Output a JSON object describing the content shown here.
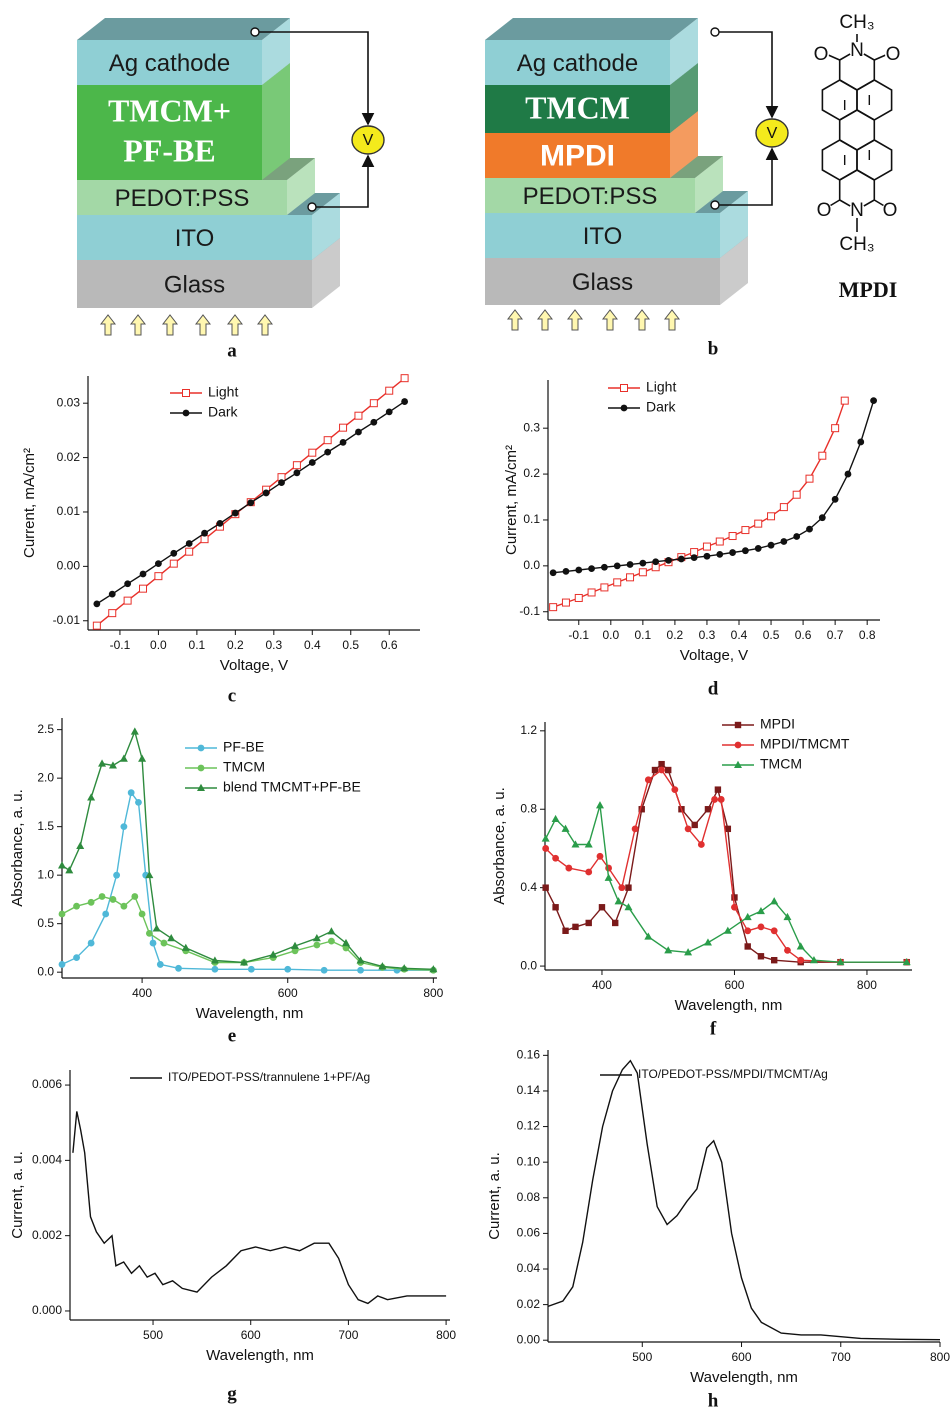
{
  "diagrams": [
    {
      "panel_label": "a",
      "voltmeter": "V",
      "layers": [
        {
          "label": "Ag cathode",
          "color": "#8fcfd4"
        },
        {
          "label": [
            "TMCM+",
            "PF-BE"
          ],
          "color": "#4cb74a"
        },
        {
          "label": "PEDOT:PSS",
          "color": "#a3d8a6"
        },
        {
          "label": "ITO",
          "color": "#8fcfd4"
        },
        {
          "label": "Glass",
          "color": "#b9b9b9"
        }
      ]
    },
    {
      "panel_label": "b",
      "voltmeter": "V",
      "layers": [
        {
          "label": "Ag cathode",
          "color": "#8fcfd4"
        },
        {
          "label": "TMCM",
          "color": "#1f7a46"
        },
        {
          "label": "MPDI",
          "color": "#f07a2a"
        },
        {
          "label": "PEDOT:PSS",
          "color": "#a3d8a6"
        },
        {
          "label": "ITO",
          "color": "#8fcfd4"
        },
        {
          "label": "Glass",
          "color": "#b9b9b9"
        }
      ]
    }
  ],
  "structure": {
    "atoms": [
      "CH₃",
      "O",
      "N",
      "O",
      "O",
      "N",
      "O",
      "CH₃"
    ],
    "name": "MPDI"
  },
  "chart_data": [
    {
      "type": "line",
      "panel_label": "c",
      "xlabel": "Voltage, V",
      "ylabel": "Current, mA/cm²",
      "legend": "upper left",
      "xlim": [
        -0.183,
        0.68
      ],
      "ylim": [
        -0.0117,
        0.035
      ],
      "xticks": [
        -0.1,
        {
          "value": 0,
          "label": "0.0"
        },
        0.1,
        0.2,
        0.3,
        0.4,
        0.5,
        0.6
      ],
      "yticks": [
        -0.01,
        {
          "value": 0,
          "label": "0.00"
        },
        0.01,
        0.02,
        0.03
      ],
      "series": [
        {
          "name": "Light",
          "color": "#e8302a",
          "marker": "square-open",
          "x": [
            -0.16,
            -0.12,
            -0.08,
            -0.04,
            0,
            0.04,
            0.08,
            0.12,
            0.16,
            0.2,
            0.24,
            0.28,
            0.32,
            0.36,
            0.4,
            0.44,
            0.48,
            0.52,
            0.56,
            0.6,
            0.64
          ],
          "values": [
            -0.0109,
            -0.0086,
            -0.0063,
            -0.0041,
            -0.0018,
            0.0005,
            0.0027,
            0.005,
            0.0073,
            0.0096,
            0.0118,
            0.0141,
            0.0164,
            0.0186,
            0.0209,
            0.0232,
            0.0255,
            0.0277,
            0.03,
            0.0323,
            0.0346
          ]
        },
        {
          "name": "Dark",
          "color": "#111111",
          "marker": "circle",
          "x": [
            -0.16,
            -0.12,
            -0.08,
            -0.04,
            0,
            0.04,
            0.08,
            0.12,
            0.16,
            0.2,
            0.24,
            0.28,
            0.32,
            0.36,
            0.4,
            0.44,
            0.48,
            0.52,
            0.56,
            0.6,
            0.64
          ],
          "values": [
            -0.0069,
            -0.0051,
            -0.0032,
            -0.0014,
            0.0005,
            0.0024,
            0.0042,
            0.0061,
            0.0079,
            0.0098,
            0.0117,
            0.0135,
            0.0154,
            0.0172,
            0.0191,
            0.021,
            0.0228,
            0.0247,
            0.0265,
            0.0284,
            0.0303
          ]
        }
      ]
    },
    {
      "type": "line",
      "panel_label": "d",
      "xlabel": "Voltage, V",
      "ylabel": "Current, mA/cm²",
      "legend": "upper left",
      "xlim": [
        -0.196,
        0.84
      ],
      "ylim": [
        -0.118,
        0.405
      ],
      "xticks": [
        -0.1,
        {
          "value": 0,
          "label": "0.0"
        },
        0.1,
        0.2,
        0.3,
        0.4,
        0.5,
        0.6,
        0.7,
        0.8
      ],
      "yticks": [
        -0.1,
        {
          "value": 0,
          "label": "0.0"
        },
        0.1,
        0.2,
        0.3
      ],
      "series": [
        {
          "name": "Light",
          "color": "#e8302a",
          "marker": "square-open",
          "x": [
            -0.18,
            -0.14,
            -0.1,
            -0.06,
            -0.02,
            0.02,
            0.06,
            0.1,
            0.14,
            0.18,
            0.22,
            0.26,
            0.3,
            0.34,
            0.38,
            0.42,
            0.46,
            0.5,
            0.54,
            0.58,
            0.62,
            0.66,
            0.7,
            0.73
          ],
          "values": [
            -0.09,
            -0.08,
            -0.07,
            -0.058,
            -0.047,
            -0.036,
            -0.025,
            -0.014,
            -0.003,
            0.008,
            0.019,
            0.03,
            0.042,
            0.053,
            0.065,
            0.078,
            0.092,
            0.108,
            0.128,
            0.155,
            0.19,
            0.24,
            0.3,
            0.36
          ]
        },
        {
          "name": "Dark",
          "color": "#111111",
          "marker": "circle",
          "x": [
            -0.18,
            -0.14,
            -0.1,
            -0.06,
            -0.02,
            0.02,
            0.06,
            0.1,
            0.14,
            0.18,
            0.22,
            0.26,
            0.3,
            0.34,
            0.38,
            0.42,
            0.46,
            0.5,
            0.54,
            0.58,
            0.62,
            0.66,
            0.7,
            0.74,
            0.78,
            0.82
          ],
          "values": [
            -0.015,
            -0.012,
            -0.009,
            -0.006,
            -0.003,
            0.0,
            0.003,
            0.006,
            0.009,
            0.012,
            0.015,
            0.018,
            0.021,
            0.025,
            0.029,
            0.033,
            0.038,
            0.045,
            0.053,
            0.064,
            0.08,
            0.105,
            0.145,
            0.2,
            0.27,
            0.36
          ]
        }
      ]
    },
    {
      "type": "line",
      "panel_label": "e",
      "xlabel": "Wavelength, nm",
      "ylabel": "Absorbance, a. u.",
      "legend": "upper right",
      "xlim": [
        290,
        805
      ],
      "ylim": [
        -0.06,
        2.62
      ],
      "xticks": [
        400,
        600,
        800
      ],
      "yticks": [
        {
          "value": 0,
          "label": "0.0"
        },
        0.5,
        {
          "value": 1,
          "label": "1.0"
        },
        1.5,
        {
          "value": 2,
          "label": "2.0"
        },
        2.5
      ],
      "series": [
        {
          "name": "PF-BE",
          "color": "#4fb8d8",
          "marker": "circle",
          "x": [
            290,
            310,
            330,
            350,
            365,
            375,
            385,
            395,
            405,
            415,
            425,
            450,
            500,
            550,
            600,
            650,
            700,
            750,
            800
          ],
          "values": [
            0.08,
            0.15,
            0.3,
            0.6,
            1.0,
            1.5,
            1.85,
            1.75,
            1.0,
            0.3,
            0.08,
            0.04,
            0.03,
            0.03,
            0.03,
            0.02,
            0.02,
            0.02,
            0.02
          ]
        },
        {
          "name": "TMCM",
          "color": "#6cc35a",
          "marker": "circle",
          "x": [
            290,
            310,
            330,
            345,
            360,
            375,
            390,
            400,
            410,
            430,
            460,
            500,
            540,
            580,
            610,
            640,
            660,
            680,
            700,
            730,
            760,
            800
          ],
          "values": [
            0.6,
            0.68,
            0.72,
            0.78,
            0.75,
            0.68,
            0.78,
            0.6,
            0.4,
            0.3,
            0.22,
            0.1,
            0.1,
            0.15,
            0.22,
            0.28,
            0.32,
            0.25,
            0.1,
            0.05,
            0.03,
            0.02
          ]
        },
        {
          "name": "blend TMCMT+PF-BE",
          "color": "#2e8b3e",
          "marker": "triangle",
          "x": [
            290,
            300,
            315,
            330,
            345,
            360,
            375,
            390,
            400,
            410,
            420,
            440,
            460,
            500,
            540,
            580,
            610,
            640,
            660,
            680,
            700,
            730,
            760,
            800
          ],
          "values": [
            1.1,
            1.05,
            1.3,
            1.8,
            2.15,
            2.13,
            2.2,
            2.48,
            2.2,
            1.0,
            0.45,
            0.35,
            0.25,
            0.12,
            0.1,
            0.18,
            0.27,
            0.35,
            0.42,
            0.3,
            0.12,
            0.06,
            0.04,
            0.03
          ]
        }
      ]
    },
    {
      "type": "line",
      "panel_label": "f",
      "xlabel": "Wavelength, nm",
      "ylabel": "Absorbance, a. u.",
      "legend": "upper right",
      "xlim": [
        314,
        868
      ],
      "ylim": [
        -0.02,
        1.245
      ],
      "xticks": [
        400,
        600,
        800
      ],
      "yticks": [
        {
          "value": 0,
          "label": "0.0"
        },
        0.4,
        0.8,
        1.2
      ],
      "series": [
        {
          "name": "MPDI",
          "color": "#7b1a1a",
          "marker": "square",
          "x": [
            315,
            330,
            345,
            360,
            380,
            400,
            420,
            440,
            460,
            480,
            490,
            500,
            520,
            540,
            560,
            575,
            590,
            600,
            620,
            640,
            660,
            700,
            760,
            860
          ],
          "values": [
            0.4,
            0.3,
            0.18,
            0.2,
            0.22,
            0.3,
            0.22,
            0.4,
            0.8,
            1.0,
            1.03,
            1.0,
            0.8,
            0.72,
            0.8,
            0.9,
            0.7,
            0.35,
            0.1,
            0.05,
            0.03,
            0.02,
            0.02,
            0.02
          ]
        },
        {
          "name": "MPDI/TMCMT",
          "color": "#e03030",
          "marker": "circle",
          "x": [
            315,
            330,
            350,
            380,
            397,
            410,
            430,
            450,
            470,
            490,
            510,
            530,
            550,
            570,
            580,
            600,
            620,
            640,
            660,
            680,
            700,
            760,
            860
          ],
          "values": [
            0.6,
            0.55,
            0.5,
            0.48,
            0.56,
            0.5,
            0.4,
            0.7,
            0.95,
            1.0,
            0.9,
            0.7,
            0.62,
            0.85,
            0.85,
            0.3,
            0.18,
            0.2,
            0.18,
            0.08,
            0.03,
            0.02,
            0.02
          ]
        },
        {
          "name": "TMCM",
          "color": "#2a9d4a",
          "marker": "triangle",
          "x": [
            315,
            330,
            345,
            360,
            380,
            397,
            410,
            425,
            440,
            470,
            500,
            530,
            560,
            590,
            620,
            640,
            660,
            680,
            700,
            720,
            760,
            860
          ],
          "values": [
            0.65,
            0.75,
            0.7,
            0.62,
            0.62,
            0.82,
            0.45,
            0.33,
            0.3,
            0.15,
            0.08,
            0.07,
            0.12,
            0.18,
            0.25,
            0.28,
            0.33,
            0.25,
            0.1,
            0.03,
            0.02,
            0.02
          ]
        }
      ]
    },
    {
      "type": "line",
      "panel_label": "g",
      "xlabel": "Wavelength, nm",
      "ylabel": "Current, a. u.",
      "legend": "upper right",
      "xlim": [
        415,
        804
      ],
      "ylim": [
        -0.00024,
        0.0064
      ],
      "xticks": [
        500,
        600,
        700,
        800
      ],
      "yticks": [
        {
          "value": 0,
          "label": "0.000"
        },
        0.002,
        0.004,
        0.006
      ],
      "series": [
        {
          "name": "ITO/PEDOT-PSS/trannulene 1+PF/Ag",
          "color": "#111111",
          "x": [
            418,
            422,
            426,
            430,
            436,
            442,
            450,
            458,
            462,
            470,
            478,
            486,
            494,
            502,
            510,
            520,
            530,
            545,
            560,
            575,
            590,
            605,
            620,
            635,
            650,
            665,
            680,
            690,
            700,
            710,
            720,
            730,
            740,
            760,
            780,
            800
          ],
          "values": [
            0.0042,
            0.0053,
            0.0048,
            0.0042,
            0.0025,
            0.0021,
            0.0018,
            0.002,
            0.0012,
            0.0013,
            0.001,
            0.0012,
            0.0009,
            0.001,
            0.0007,
            0.0008,
            0.0006,
            0.0005,
            0.0009,
            0.0012,
            0.0016,
            0.0017,
            0.0016,
            0.0017,
            0.0016,
            0.0018,
            0.0018,
            0.0014,
            0.0007,
            0.0003,
            0.0002,
            0.0004,
            0.0003,
            0.0004,
            0.0004,
            0.0004
          ]
        }
      ]
    },
    {
      "type": "line",
      "panel_label": "h",
      "xlabel": "Wavelength, nm",
      "ylabel": "Current, a. u.",
      "legend": "upper right",
      "xlim": [
        405,
        800
      ],
      "ylim": [
        -0.001,
        0.163
      ],
      "xticks": [
        500,
        600,
        700,
        800
      ],
      "yticks": [
        {
          "value": 0,
          "label": "0.00"
        },
        0.02,
        0.04,
        0.06,
        0.08,
        {
          "value": 0.1,
          "label": "0.10"
        },
        0.12,
        0.14,
        0.16
      ],
      "series": [
        {
          "name": "ITO/PEDOT-PSS/MPDI/TMCMT/Ag",
          "color": "#111111",
          "x": [
            405,
            420,
            430,
            440,
            450,
            460,
            470,
            480,
            488,
            495,
            505,
            515,
            525,
            535,
            545,
            555,
            565,
            572,
            580,
            590,
            600,
            610,
            620,
            640,
            660,
            680,
            700,
            720,
            760,
            800
          ],
          "values": [
            0.019,
            0.022,
            0.03,
            0.055,
            0.09,
            0.12,
            0.14,
            0.152,
            0.157,
            0.15,
            0.11,
            0.075,
            0.065,
            0.07,
            0.078,
            0.085,
            0.108,
            0.112,
            0.1,
            0.06,
            0.035,
            0.018,
            0.01,
            0.004,
            0.003,
            0.003,
            0.002,
            0.001,
            0.0005,
            0.0003
          ]
        }
      ]
    }
  ]
}
